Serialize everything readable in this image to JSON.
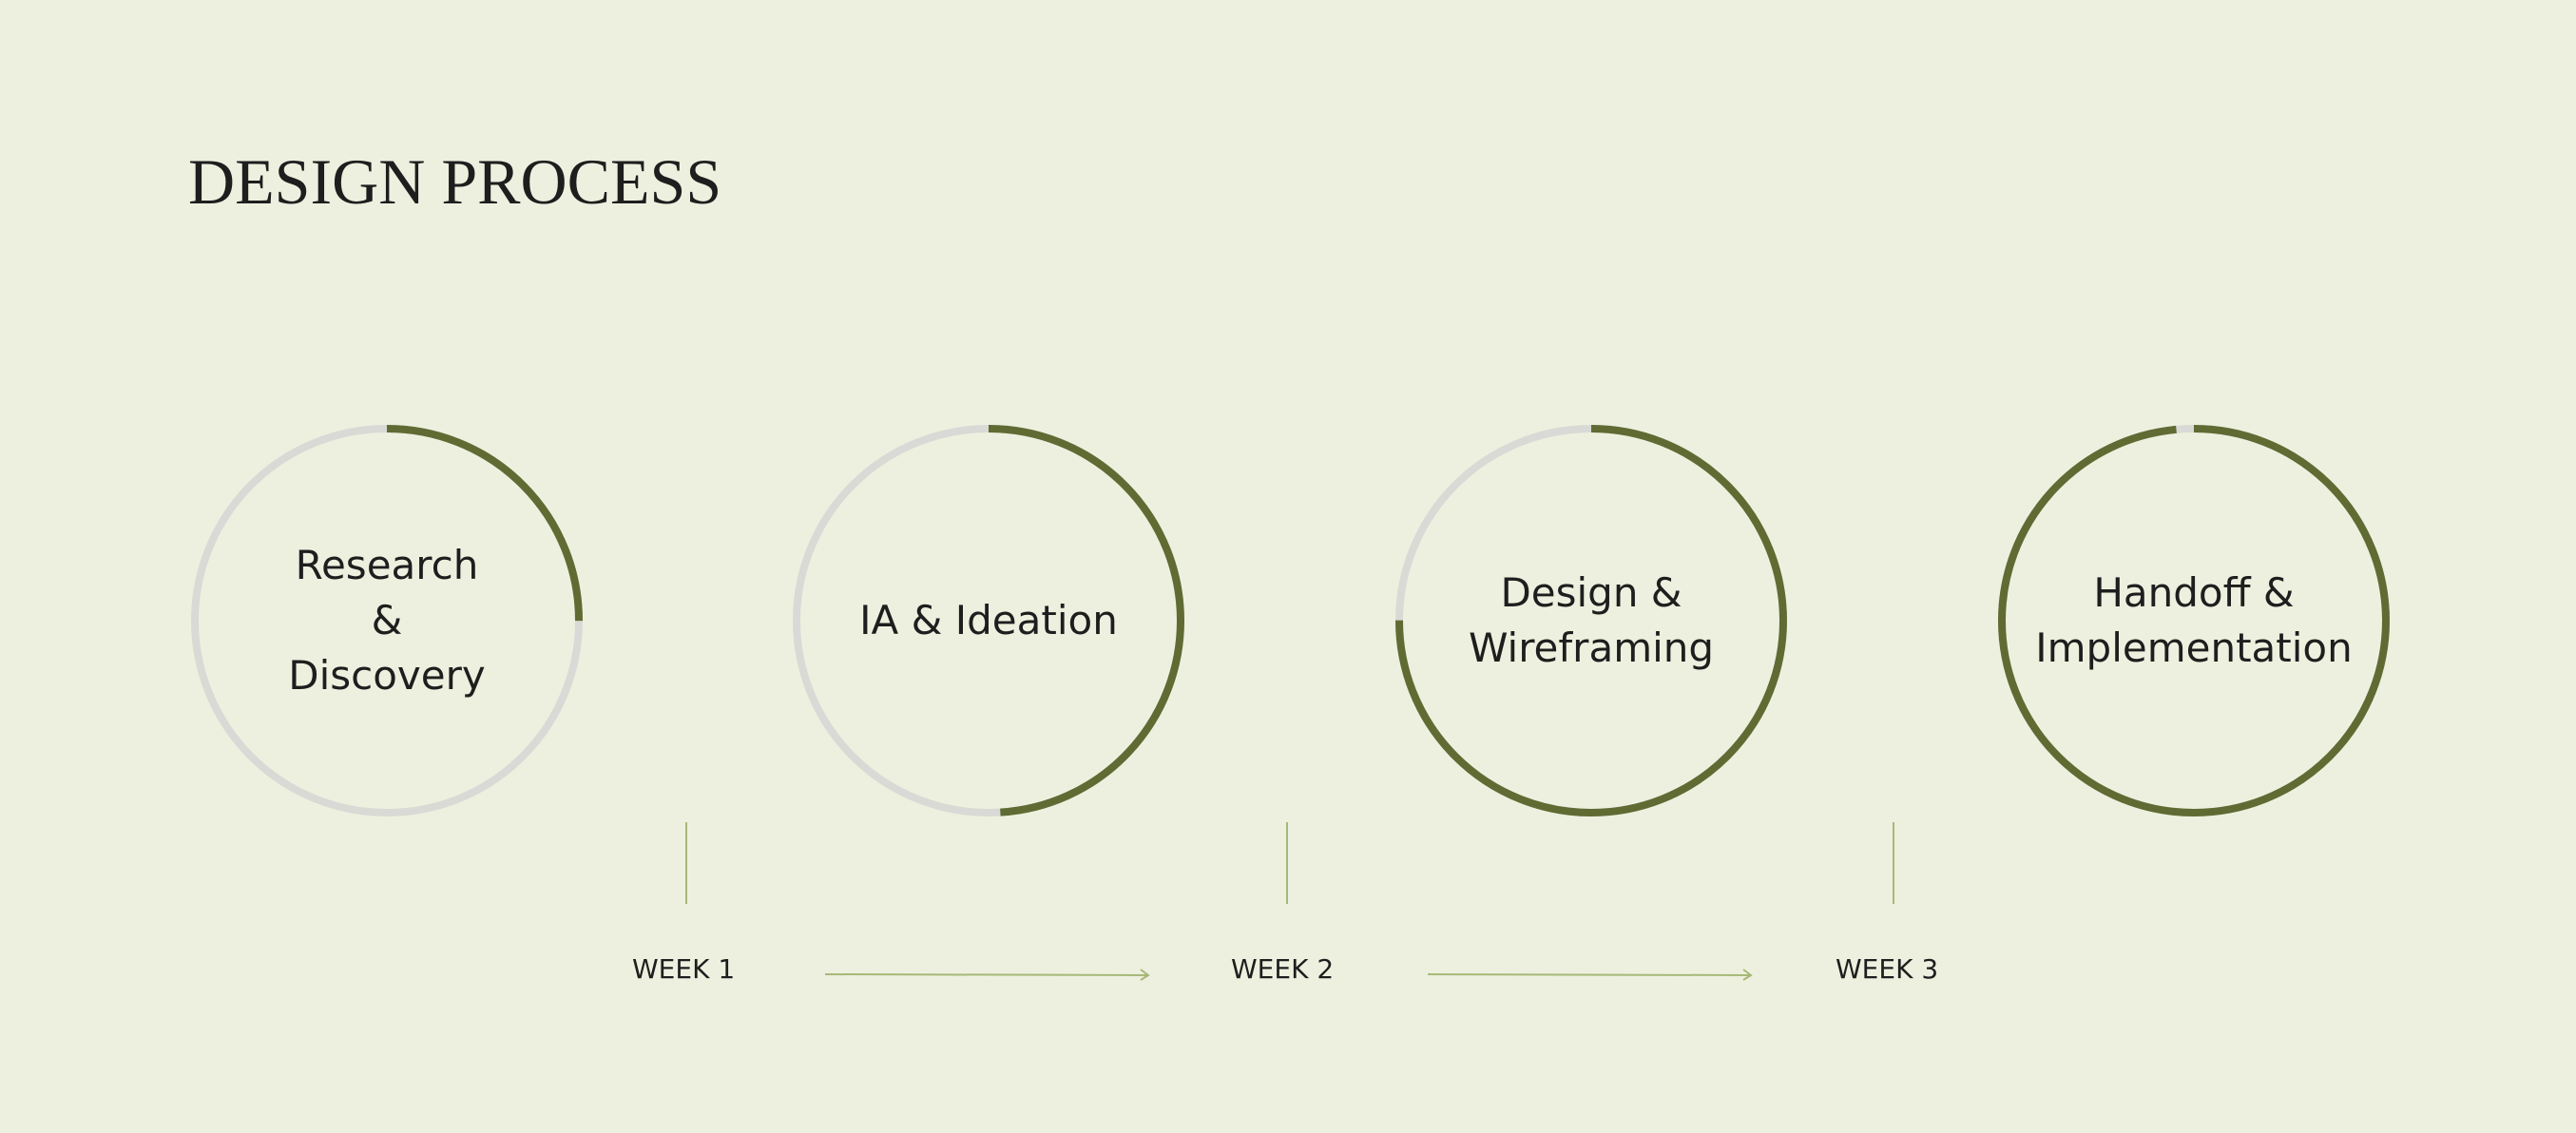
{
  "title": "DESIGN PROCESS",
  "colors": {
    "background": "#eef0df",
    "progress": "#5f6b33",
    "track": "#d9d9d6",
    "timeline": "#a6b878",
    "text": "#1e1e1e"
  },
  "stages": [
    {
      "label": "Research\n&\nDiscovery",
      "progress": 0.25
    },
    {
      "label": "IA & Ideation",
      "progress": 0.49
    },
    {
      "label": "Design &\nWireframing",
      "progress": 0.75
    },
    {
      "label": "Handoff &\nImplementation",
      "progress": 0.985
    }
  ],
  "timeline": {
    "weeks": [
      "WEEK 1",
      "WEEK 2",
      "WEEK 3"
    ]
  }
}
